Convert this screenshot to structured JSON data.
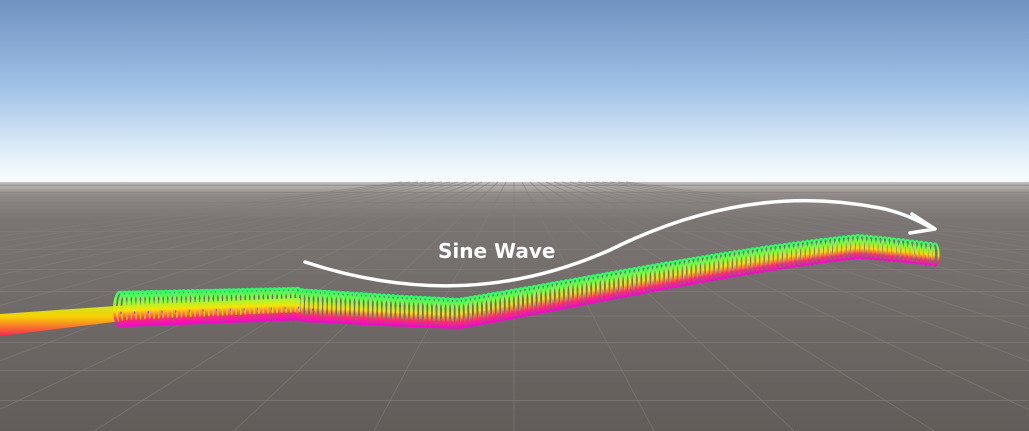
{
  "scene": {
    "annotation": {
      "label": "Sine Wave",
      "color": "#ffffff"
    },
    "colors": {
      "sky_top": "#7092c0",
      "sky_mid": "#9fc0e6",
      "horizon_haze": "#e8f4fa",
      "ground_far": "#8a8482",
      "ground_near": "#645e5b",
      "grid_line": "#837d7a",
      "trail_top": [
        "#ffe100",
        "#8cff3a",
        "#2bff6a"
      ],
      "trail_bottom": [
        "#ff2d6e",
        "#ff1fb0",
        "#ff00d4"
      ],
      "ring_accent": "#2a3cff"
    }
  }
}
